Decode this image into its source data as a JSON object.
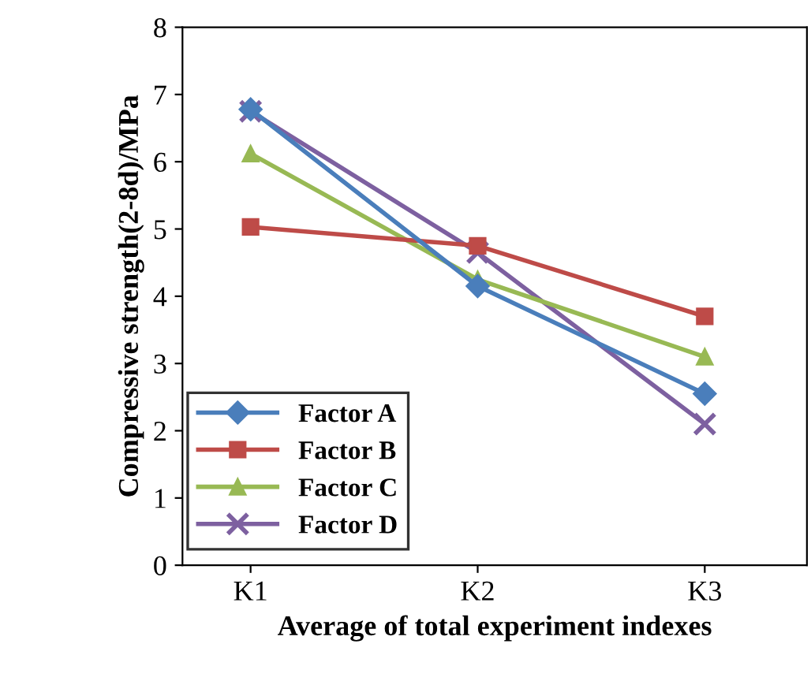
{
  "chart_data": {
    "type": "line",
    "xlabel": "Average of total experiment indexes",
    "ylabel": "Compressive strength(2-8d)/MPa",
    "categories": [
      "K1",
      "K2",
      "K3"
    ],
    "ylim": [
      0,
      8
    ],
    "yticks": [
      0,
      1,
      2,
      3,
      4,
      5,
      6,
      7,
      8
    ],
    "grid": false,
    "legend": "bottom left",
    "series": [
      {
        "name": "Factor A",
        "color": "#4a7ebb",
        "marker": "diamond",
        "values": [
          6.78,
          4.15,
          2.55
        ]
      },
      {
        "name": "Factor B",
        "color": "#be4b48",
        "marker": "square",
        "values": [
          5.03,
          4.75,
          3.7
        ]
      },
      {
        "name": "Factor C",
        "color": "#98b954",
        "marker": "triangle",
        "values": [
          6.12,
          4.25,
          3.1
        ]
      },
      {
        "name": "Factor D",
        "color": "#7d60a0",
        "marker": "cross",
        "values": [
          6.75,
          4.65,
          2.1
        ]
      }
    ]
  }
}
